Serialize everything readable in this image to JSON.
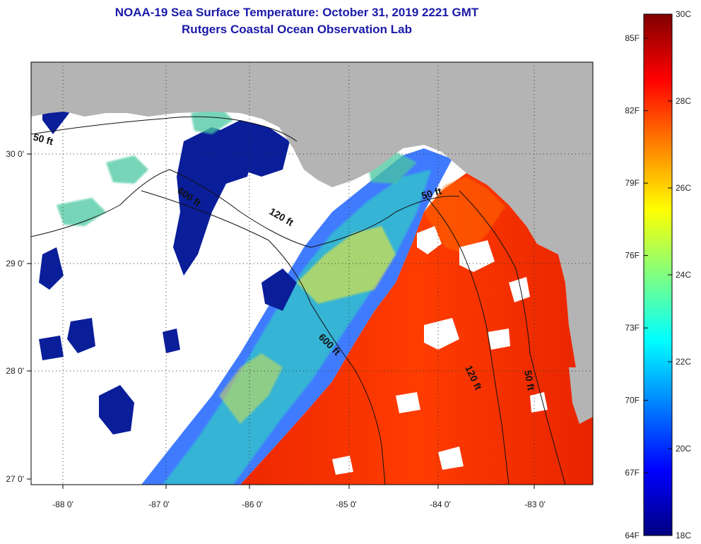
{
  "title": "NOAA-19 Sea Surface Temperature:  October 31, 2019 2221 GMT",
  "subtitle": "Rutgers Coastal Ocean Observation Lab",
  "latitude_ticks": [
    "30 0'",
    "29 0'",
    "28 0'",
    "27 0'"
  ],
  "longitude_ticks": [
    "-88 0'",
    "-87 0'",
    "-86 0'",
    "-85 0'",
    "-84 0'",
    "-83 0'"
  ],
  "contour_labels": [
    "50 ft",
    "600 ft",
    "120 ft",
    "50 ft",
    "600 ft",
    "120 ft",
    "50 ft"
  ],
  "colorbar": {
    "fahrenheit_labels": [
      "85F",
      "82F",
      "79F",
      "76F",
      "73F",
      "70F",
      "67F",
      "64F"
    ],
    "celsius_labels": [
      "30C",
      "28C",
      "26C",
      "24C",
      "22C",
      "20C",
      "18C"
    ],
    "min_c": 18,
    "max_c": 30
  },
  "colors": {
    "land": "#b4b4b4",
    "cloud": "#ffffff",
    "title": "#1a1aa8"
  }
}
